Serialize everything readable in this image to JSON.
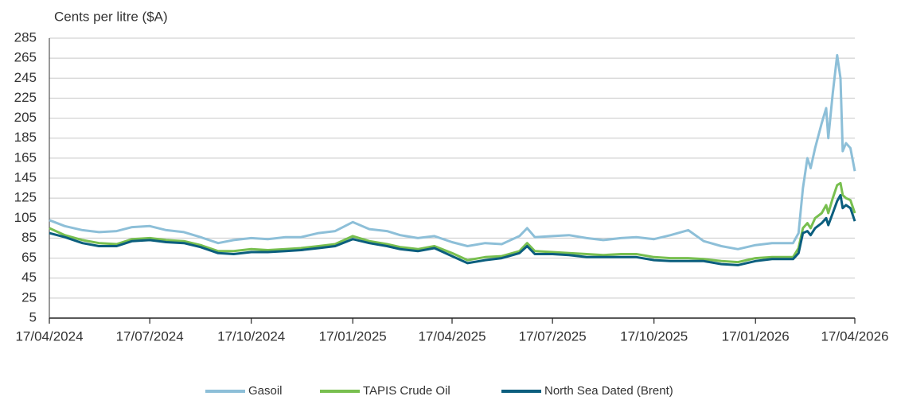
{
  "chart_data": {
    "type": "line",
    "y_label": "Cents per litre ($A)",
    "x": [
      "2024-04-17",
      "2024-05-01",
      "2024-05-17",
      "2024-06-01",
      "2024-06-17",
      "2024-07-01",
      "2024-07-17",
      "2024-08-01",
      "2024-08-17",
      "2024-09-01",
      "2024-09-17",
      "2024-10-01",
      "2024-10-17",
      "2024-11-01",
      "2024-11-17",
      "2024-12-01",
      "2024-12-17",
      "2025-01-01",
      "2025-01-17",
      "2025-02-01",
      "2025-02-17",
      "2025-03-01",
      "2025-03-17",
      "2025-04-01",
      "2025-04-17",
      "2025-05-01",
      "2025-05-17",
      "2025-06-01",
      "2025-06-17",
      "2025-06-24",
      "2025-07-01",
      "2025-07-17",
      "2025-08-01",
      "2025-08-17",
      "2025-09-01",
      "2025-09-17",
      "2025-10-01",
      "2025-10-17",
      "2025-11-01",
      "2025-11-17",
      "2025-12-01",
      "2025-12-17",
      "2026-01-01",
      "2026-01-17",
      "2026-02-01",
      "2026-02-20",
      "2026-02-25",
      "2026-03-01",
      "2026-03-05",
      "2026-03-08",
      "2026-03-12",
      "2026-03-18",
      "2026-03-22",
      "2026-03-24",
      "2026-03-28",
      "2026-04-01",
      "2026-04-04",
      "2026-04-06",
      "2026-04-09",
      "2026-04-13",
      "2026-04-17"
    ],
    "series": [
      {
        "name": "Gasoil",
        "color": "#8dbfd8",
        "values": [
          103,
          97,
          93,
          91,
          92,
          96,
          97,
          93,
          91,
          86,
          80,
          83,
          85,
          84,
          86,
          86,
          90,
          92,
          101,
          94,
          92,
          88,
          85,
          87,
          81,
          77,
          80,
          79,
          87,
          95,
          86,
          87,
          88,
          85,
          83,
          85,
          86,
          84,
          88,
          93,
          82,
          77,
          74,
          78,
          80,
          80,
          90,
          135,
          165,
          155,
          175,
          200,
          215,
          185,
          230,
          268,
          245,
          172,
          180,
          175,
          152
        ]
      },
      {
        "name": "TAPIS Crude Oil",
        "color": "#78bf4f",
        "values": [
          95,
          88,
          83,
          80,
          79,
          84,
          85,
          83,
          82,
          78,
          72,
          72,
          74,
          73,
          74,
          75,
          77,
          79,
          87,
          82,
          79,
          76,
          74,
          77,
          70,
          63,
          66,
          67,
          72,
          80,
          72,
          71,
          70,
          69,
          68,
          69,
          69,
          66,
          65,
          65,
          64,
          62,
          61,
          65,
          66,
          66,
          75,
          95,
          100,
          95,
          105,
          110,
          118,
          110,
          125,
          138,
          140,
          128,
          125,
          123,
          110
        ]
      },
      {
        "name": "North Sea Dated (Brent)",
        "color": "#0b5e7e",
        "values": [
          90,
          86,
          80,
          77,
          77,
          82,
          83,
          81,
          80,
          76,
          70,
          69,
          71,
          71,
          72,
          73,
          75,
          77,
          84,
          80,
          77,
          74,
          72,
          75,
          67,
          60,
          63,
          65,
          70,
          77,
          69,
          69,
          68,
          66,
          66,
          66,
          66,
          63,
          62,
          62,
          62,
          59,
          58,
          62,
          64,
          64,
          70,
          90,
          92,
          88,
          95,
          100,
          105,
          98,
          110,
          122,
          128,
          115,
          118,
          115,
          102
        ]
      }
    ],
    "xlim": [
      "2024-04-17",
      "2026-04-17"
    ],
    "xticks": [
      {
        "value": "2024-04-17",
        "label": "17/04/2024"
      },
      {
        "value": "2024-07-17",
        "label": "17/07/2024"
      },
      {
        "value": "2024-10-17",
        "label": "17/10/2024"
      },
      {
        "value": "2025-01-17",
        "label": "17/01/2025"
      },
      {
        "value": "2025-04-17",
        "label": "17/04/2025"
      },
      {
        "value": "2025-07-17",
        "label": "17/07/2025"
      },
      {
        "value": "2025-10-17",
        "label": "17/10/2025"
      },
      {
        "value": "2026-01-17",
        "label": "17/01/2026"
      },
      {
        "value": "2026-04-17",
        "label": "17/04/2026"
      }
    ],
    "ylim": [
      5,
      285
    ],
    "yticks": [
      5,
      25,
      45,
      65,
      85,
      105,
      125,
      145,
      165,
      185,
      205,
      225,
      245,
      265,
      285
    ],
    "grid": true,
    "legend": "bottom"
  }
}
